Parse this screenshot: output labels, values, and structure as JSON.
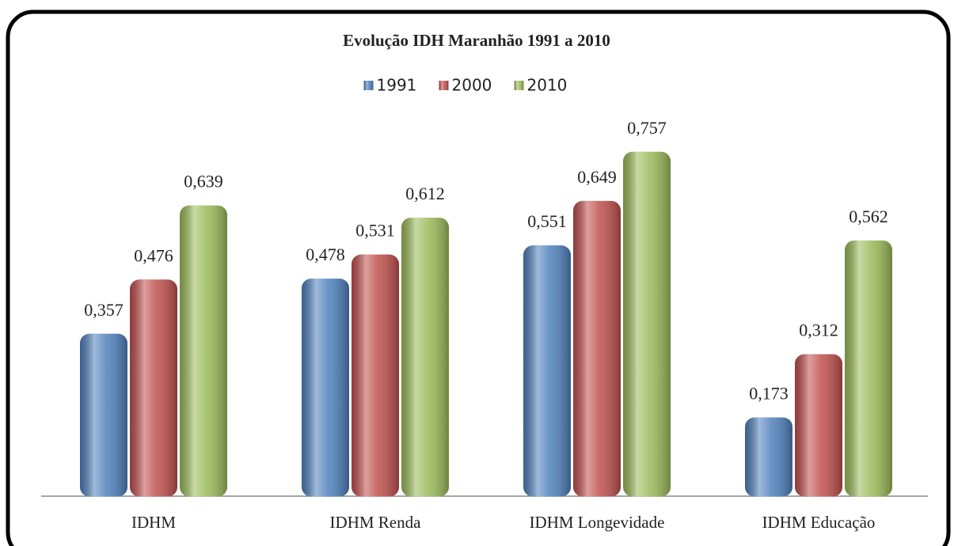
{
  "chart_data": {
    "type": "bar",
    "title": "Evolução IDH Maranhão 1991 a 2010",
    "categories": [
      "IDHM",
      "IDHM Renda",
      "IDHM Longevidade",
      "IDHM Educação"
    ],
    "series": [
      {
        "name": "1991",
        "color": "#4f81bd",
        "values": [
          0.357,
          0.478,
          0.551,
          0.173
        ],
        "value_labels": [
          "0,357",
          "0,478",
          "0,551",
          "0,173"
        ]
      },
      {
        "name": "2000",
        "color": "#c0504d",
        "values": [
          0.476,
          0.531,
          0.649,
          0.312
        ],
        "value_labels": [
          "0,476",
          "0,531",
          "0,649",
          "0,312"
        ]
      },
      {
        "name": "2010",
        "color": "#9bbb59",
        "values": [
          0.639,
          0.612,
          0.757,
          0.562
        ],
        "value_labels": [
          "0,639",
          "0,612",
          "0,757",
          "0,562"
        ]
      }
    ],
    "legend": "top"
  }
}
